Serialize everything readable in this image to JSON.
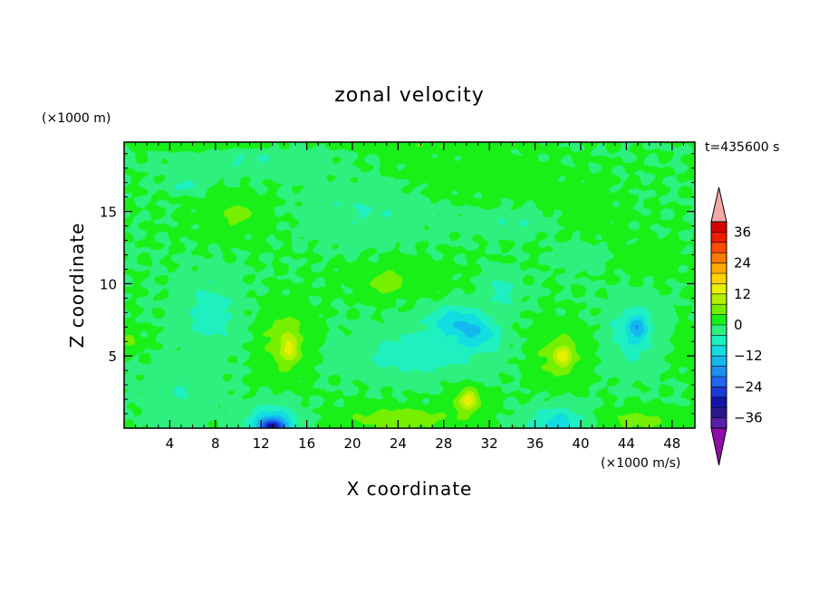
{
  "chart_data": {
    "type": "heatmap",
    "title": "zonal velocity",
    "xlabel": "X coordinate",
    "ylabel": "Z coordinate",
    "x_unit_label": "(×1000 m/s)",
    "y_unit_label": "(×1000 m)",
    "time_label": "t=435600 s",
    "xlim": [
      0,
      50
    ],
    "ylim": [
      0,
      19.8
    ],
    "x_ticks": [
      4,
      8,
      12,
      16,
      20,
      24,
      28,
      32,
      36,
      40,
      44,
      48
    ],
    "y_ticks": [
      5,
      10,
      15
    ],
    "colorbar": {
      "levels": [
        -40,
        -36,
        -32,
        -28,
        -24,
        -20,
        -16,
        -12,
        -8,
        -4,
        0,
        4,
        8,
        12,
        16,
        20,
        24,
        28,
        32,
        36,
        40
      ],
      "colors": [
        "#5a1fa8",
        "#2a1a8c",
        "#1414a8",
        "#1a3ad8",
        "#1f66f0",
        "#1a90f0",
        "#14b8ee",
        "#12dde0",
        "#1ef0c0",
        "#2ef07e",
        "#18f018",
        "#76f000",
        "#b4f000",
        "#e6f000",
        "#ffd200",
        "#ffaa00",
        "#ff7a00",
        "#ff4a00",
        "#f01a00",
        "#d80000"
      ],
      "under_color": "#8e0fa8",
      "over_color": "#f4a8a8",
      "tick_labels": [
        "36",
        "24",
        "12",
        "0",
        "−12",
        "−24",
        "−36"
      ]
    },
    "background_value": 0,
    "features": [
      {
        "x": 14,
        "y": 6.0,
        "sx": 2.2,
        "sy": 2.4,
        "value": 6
      },
      {
        "x": 14.5,
        "y": 5.5,
        "sx": 0.8,
        "sy": 1.0,
        "value": 8
      },
      {
        "x": 38,
        "y": 5.0,
        "sx": 2.4,
        "sy": 2.0,
        "value": 6
      },
      {
        "x": 38.5,
        "y": 5.0,
        "sx": 0.8,
        "sy": 0.7,
        "value": 9
      },
      {
        "x": 30,
        "y": 1.8,
        "sx": 1.6,
        "sy": 1.2,
        "value": 6
      },
      {
        "x": 30.2,
        "y": 2.0,
        "sx": 0.7,
        "sy": 0.6,
        "value": 9
      },
      {
        "x": 24,
        "y": 0.6,
        "sx": 4.5,
        "sy": 0.9,
        "value": 7
      },
      {
        "x": 45,
        "y": 0.5,
        "sx": 3.0,
        "sy": 0.8,
        "value": 6
      },
      {
        "x": 13,
        "y": 0.3,
        "sx": 2.2,
        "sy": 1.2,
        "value": -14
      },
      {
        "x": 13,
        "y": 0.1,
        "sx": 1.0,
        "sy": 0.5,
        "value": -18
      },
      {
        "x": 38,
        "y": 0.3,
        "sx": 2.4,
        "sy": 1.2,
        "value": -10
      },
      {
        "x": 26,
        "y": 5.2,
        "sx": 5.5,
        "sy": 1.6,
        "value": -7
      },
      {
        "x": 29,
        "y": 7.5,
        "sx": 2.4,
        "sy": 1.0,
        "value": -10
      },
      {
        "x": 31,
        "y": 6.5,
        "sx": 2.0,
        "sy": 1.0,
        "value": -9
      },
      {
        "x": 7.5,
        "y": 8.0,
        "sx": 2.5,
        "sy": 2.5,
        "value": -6
      },
      {
        "x": 44.5,
        "y": 6.5,
        "sx": 2.2,
        "sy": 2.2,
        "value": -7
      },
      {
        "x": 45,
        "y": 7.0,
        "sx": 0.9,
        "sy": 0.9,
        "value": -9
      },
      {
        "x": 33,
        "y": 9.5,
        "sx": 1.5,
        "sy": 1.2,
        "value": -6
      },
      {
        "x": 5.5,
        "y": 16.8,
        "sx": 1.5,
        "sy": 0.5,
        "value": -6
      },
      {
        "x": 21,
        "y": 15.0,
        "sx": 5.0,
        "sy": 2.0,
        "value": -4
      },
      {
        "x": 11,
        "y": 18.5,
        "sx": 6.0,
        "sy": 1.0,
        "value": -4
      },
      {
        "x": 34,
        "y": 14.2,
        "sx": 4.5,
        "sy": 0.8,
        "value": -4
      },
      {
        "x": 5,
        "y": 2.5,
        "sx": 3.0,
        "sy": 2.0,
        "value": -4
      },
      {
        "x": 40,
        "y": 12.0,
        "sx": 2.0,
        "sy": 1.0,
        "value": -4
      },
      {
        "x": 30,
        "y": 17.5,
        "sx": 8.0,
        "sy": 1.5,
        "value": 2
      },
      {
        "x": 40,
        "y": 14.5,
        "sx": 4.0,
        "sy": 2.0,
        "value": 2
      },
      {
        "x": 24,
        "y": 10.5,
        "sx": 5.0,
        "sy": 1.3,
        "value": 2
      },
      {
        "x": 23,
        "y": 10.0,
        "sx": 1.6,
        "sy": 0.7,
        "value": 6
      },
      {
        "x": 9.5,
        "y": 14.5,
        "sx": 4.0,
        "sy": 1.8,
        "value": 2
      },
      {
        "x": 10,
        "y": 14.8,
        "sx": 1.5,
        "sy": 0.6,
        "value": 5
      },
      {
        "x": 46,
        "y": 11.5,
        "sx": 3.0,
        "sy": 1.2,
        "value": 2
      },
      {
        "x": 7,
        "y": 19.6,
        "sx": 6.0,
        "sy": 0.4,
        "value": 4
      },
      {
        "x": 27,
        "y": 19.6,
        "sx": 7.0,
        "sy": 0.4,
        "value": 3
      },
      {
        "x": 0.5,
        "y": 6.0,
        "sx": 1.0,
        "sy": 0.8,
        "value": 5
      },
      {
        "x": 49.5,
        "y": 5.5,
        "sx": 1.0,
        "sy": 1.5,
        "value": 3
      }
    ]
  }
}
